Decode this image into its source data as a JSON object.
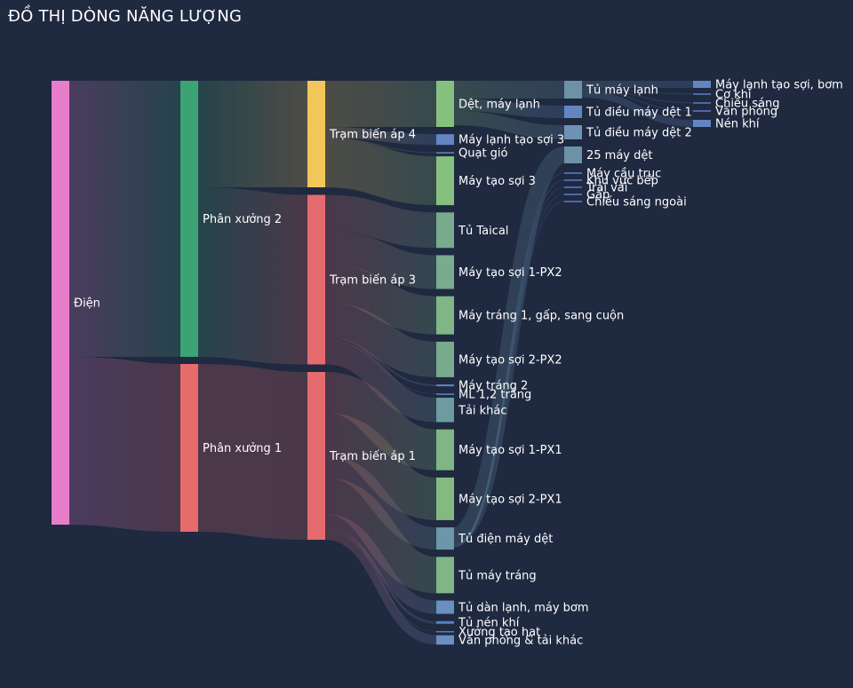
{
  "title": "ĐỒ THỊ DÒNG NĂNG LƯỢNG",
  "chart_data": {
    "type": "sankey",
    "title": "ĐỒ THỊ DÒNG NĂNG LƯỢNG",
    "units": "relative energy (estimated)",
    "nodes": [
      {
        "id": "dien",
        "label": "Điện",
        "column": 0,
        "color": "#e87ecb"
      },
      {
        "id": "px2",
        "label": "Phân xưởng 2",
        "column": 1,
        "color": "#3da374"
      },
      {
        "id": "px1",
        "label": "Phân xưởng 1",
        "column": 1,
        "color": "#e86b6b"
      },
      {
        "id": "tba4",
        "label": "Trạm biến áp 4",
        "column": 2,
        "color": "#f2c75a"
      },
      {
        "id": "tba3",
        "label": "Trạm biến áp 3",
        "column": 2,
        "color": "#e56b6e"
      },
      {
        "id": "tba1",
        "label": "Trạm biến áp 1",
        "column": 2,
        "color": "#e56b6e"
      },
      {
        "id": "det",
        "label": "Dệt, máy lạnh",
        "column": 3,
        "color": "#86c07e"
      },
      {
        "id": "mlts3",
        "label": "Máy lạnh tạo sợi 3",
        "column": 3,
        "color": "#6386c3"
      },
      {
        "id": "quat",
        "label": "Quạt gió",
        "column": 3,
        "color": "#6386c3"
      },
      {
        "id": "mts3",
        "label": "Máy tạo sợi 3",
        "column": 3,
        "color": "#86c07e"
      },
      {
        "id": "taical",
        "label": "Tủ Taical",
        "column": 3,
        "color": "#79ab8e"
      },
      {
        "id": "mts1px2",
        "label": "Máy tạo sợi 1-PX2",
        "column": 3,
        "color": "#79ab8e"
      },
      {
        "id": "mt1",
        "label": "Máy tráng 1, gấp, sang cuộn",
        "column": 3,
        "color": "#80b586"
      },
      {
        "id": "mts2px2",
        "label": "Máy tạo sợi 2-PX2",
        "column": 3,
        "color": "#79ab8e"
      },
      {
        "id": "mt2",
        "label": "Máy tráng 2",
        "column": 3,
        "color": "#6386c3"
      },
      {
        "id": "ml12",
        "label": "ML 1,2 trắng",
        "column": 3,
        "color": "#6386c3"
      },
      {
        "id": "taikhac",
        "label": "Tải khác",
        "column": 3,
        "color": "#6d9ba0"
      },
      {
        "id": "mts1px1",
        "label": "Máy tạo sợi 1-PX1",
        "column": 3,
        "color": "#80b586"
      },
      {
        "id": "mts2px1",
        "label": "Máy tạo sợi 2-PX1",
        "column": 3,
        "color": "#84ba80"
      },
      {
        "id": "tdmd",
        "label": "Tủ điện máy dệt",
        "column": 3,
        "color": "#6d97a8"
      },
      {
        "id": "tmt",
        "label": "Tủ máy tráng",
        "column": 3,
        "color": "#80b586"
      },
      {
        "id": "tdl",
        "label": "Tủ dàn lạnh, máy bơm",
        "column": 3,
        "color": "#6a8fc0"
      },
      {
        "id": "tnk",
        "label": "Tủ nén khí",
        "column": 3,
        "color": "#5b7fc7"
      },
      {
        "id": "xth",
        "label": "Xưởng tạo hạt",
        "column": 3,
        "color": "#5b7fc7"
      },
      {
        "id": "vp",
        "label": "Văn phòng & tải khác",
        "column": 3,
        "color": "#6a8fc0"
      },
      {
        "id": "tml",
        "label": "Tủ máy lạnh",
        "column": 4,
        "color": "#6d92a8"
      },
      {
        "id": "tdmd1",
        "label": "Tủ điều máy dệt 1",
        "column": 4,
        "color": "#6386c3"
      },
      {
        "id": "tdmd2",
        "label": "Tủ điều máy dệt 2",
        "column": 4,
        "color": "#6d92b4"
      },
      {
        "id": "d25",
        "label": "25 máy dệt",
        "column": 4,
        "color": "#6d92a8"
      },
      {
        "id": "mct",
        "label": "Máy cầu trục",
        "column": 4,
        "color": "#5b7fc7"
      },
      {
        "id": "kvb",
        "label": "Khu vực bếp",
        "column": 4,
        "color": "#5b7fc7"
      },
      {
        "id": "tv",
        "label": "Trải vải",
        "column": 4,
        "color": "#5b7fc7"
      },
      {
        "id": "gap",
        "label": "Gấp",
        "column": 4,
        "color": "#5b7fc7"
      },
      {
        "id": "csn",
        "label": "Chiếu sáng ngoài",
        "column": 4,
        "color": "#5b7fc7"
      },
      {
        "id": "mltsb",
        "label": "Máy lạnh tạo sợi, bơm",
        "column": 5,
        "color": "#6386c3"
      },
      {
        "id": "ck",
        "label": "Cơ khí",
        "column": 5,
        "color": "#5b7fc7"
      },
      {
        "id": "cs",
        "label": "Chiếu sáng",
        "column": 5,
        "color": "#5b7fc7"
      },
      {
        "id": "vph",
        "label": "Văn phòng",
        "column": 5,
        "color": "#5b7fc7"
      },
      {
        "id": "nk",
        "label": "Nén khí",
        "column": 5,
        "color": "#6386c3"
      }
    ],
    "links": [
      {
        "source": "dien",
        "target": "px2",
        "value": 311
      },
      {
        "source": "dien",
        "target": "px1",
        "value": 189
      },
      {
        "source": "px2",
        "target": "tba4",
        "value": 120
      },
      {
        "source": "px2",
        "target": "tba3",
        "value": 191
      },
      {
        "source": "px1",
        "target": "tba1",
        "value": 189
      },
      {
        "source": "tba4",
        "target": "det",
        "value": 52
      },
      {
        "source": "tba4",
        "target": "mlts3",
        "value": 12
      },
      {
        "source": "tba4",
        "target": "quat",
        "value": 1
      },
      {
        "source": "tba4",
        "target": "mts3",
        "value": 55
      },
      {
        "source": "tba3",
        "target": "taical",
        "value": 40
      },
      {
        "source": "tba3",
        "target": "mts1px2",
        "value": 38
      },
      {
        "source": "tba3",
        "target": "mt1",
        "value": 43
      },
      {
        "source": "tba3",
        "target": "mts2px2",
        "value": 40
      },
      {
        "source": "tba3",
        "target": "mt2",
        "value": 2
      },
      {
        "source": "tba3",
        "target": "ml12",
        "value": 0.5
      },
      {
        "source": "tba3",
        "target": "taikhac",
        "value": 27.5
      },
      {
        "source": "tba1",
        "target": "mts1px1",
        "value": 46
      },
      {
        "source": "tba1",
        "target": "mts2px1",
        "value": 48
      },
      {
        "source": "tba1",
        "target": "tdmd",
        "value": 25
      },
      {
        "source": "tba1",
        "target": "tmt",
        "value": 41
      },
      {
        "source": "tba1",
        "target": "tdl",
        "value": 15
      },
      {
        "source": "tba1",
        "target": "tnk",
        "value": 3
      },
      {
        "source": "tba1",
        "target": "xth",
        "value": 0.5
      },
      {
        "source": "tba1",
        "target": "vp",
        "value": 10.5
      },
      {
        "source": "det",
        "target": "tml",
        "value": 20
      },
      {
        "source": "det",
        "target": "tdmd1",
        "value": 14
      },
      {
        "source": "det",
        "target": "tdmd2",
        "value": 16
      },
      {
        "source": "tdmd",
        "target": "d25",
        "value": 19
      },
      {
        "source": "tdmd",
        "target": "mct",
        "value": 0.5
      },
      {
        "source": "tdmd",
        "target": "kvb",
        "value": 1
      },
      {
        "source": "tdmd",
        "target": "tv",
        "value": 0.5
      },
      {
        "source": "tdmd",
        "target": "gap",
        "value": 0.5
      },
      {
        "source": "tdmd",
        "target": "csn",
        "value": 0.5
      },
      {
        "source": "tml",
        "target": "mltsb",
        "value": 8
      },
      {
        "source": "tml",
        "target": "ck",
        "value": 1
      },
      {
        "source": "tml",
        "target": "cs",
        "value": 1
      },
      {
        "source": "tml",
        "target": "vph",
        "value": 1
      },
      {
        "source": "tml",
        "target": "nk",
        "value": 8
      }
    ]
  }
}
